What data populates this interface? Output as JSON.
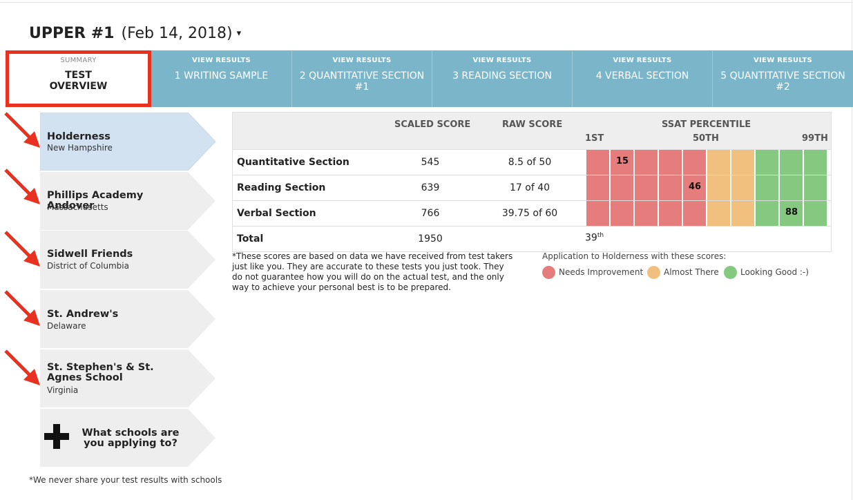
{
  "header": {
    "title_bold": "UPPER #1",
    "title_date": "(Feb 14, 2018)",
    "caret": "▾"
  },
  "tabs": [
    {
      "kicker": "SUMMARY",
      "label": "TEST OVERVIEW",
      "active": true
    },
    {
      "kicker": "VIEW RESULTS",
      "label": "1 WRITING SAMPLE",
      "active": false
    },
    {
      "kicker": "VIEW RESULTS",
      "label": "2 QUANTITATIVE SECTION #1",
      "active": false
    },
    {
      "kicker": "VIEW RESULTS",
      "label": "3 READING SECTION",
      "active": false
    },
    {
      "kicker": "VIEW RESULTS",
      "label": "4 VERBAL SECTION",
      "active": false
    },
    {
      "kicker": "VIEW RESULTS",
      "label": "5 QUANTITATIVE SECTION #2",
      "active": false
    }
  ],
  "schools": [
    {
      "name": "Holderness",
      "state": "New Hampshire",
      "selected": true
    },
    {
      "name": "Phillips Academy Andover",
      "state": "Massachusetts",
      "selected": false
    },
    {
      "name": "Sidwell Friends",
      "state": "District of Columbia",
      "selected": false
    },
    {
      "name": "St. Andrew's",
      "state": "Delaware",
      "selected": false
    },
    {
      "name": "St. Stephen's & St. Agnes School",
      "state": "Virginia",
      "selected": false
    }
  ],
  "add_school": {
    "label": "What schools are you applying to?"
  },
  "footnote": "*We never share your test results with schools",
  "table": {
    "headers": {
      "scaled": "SCALED SCORE",
      "raw": "RAW SCORE",
      "percentile": "SSAT PERCENTILE",
      "p_low": "1ST",
      "p_mid": "50TH",
      "p_high": "99TH"
    },
    "rows": [
      {
        "section": "Quantitative Section",
        "scaled": "545",
        "raw": "8.5 of 50",
        "percentile": "15"
      },
      {
        "section": "Reading Section",
        "scaled": "639",
        "raw": "17 of 40",
        "percentile": "46"
      },
      {
        "section": "Verbal Section",
        "scaled": "766",
        "raw": "39.75 of 60",
        "percentile": "88"
      }
    ],
    "total": {
      "label": "Total",
      "scaled": "1950",
      "percentile": "39",
      "suffix": "th"
    },
    "scale_colors": [
      "red",
      "red",
      "red",
      "red",
      "red",
      "yellow",
      "yellow",
      "green",
      "green",
      "green"
    ]
  },
  "disclaimer": "*These scores are based on data we have received from test takers just like you. They are accurate to these tests you just took. They do not guarantee how you will do on the actual test, and the only way to achieve your personal best is to be prepared.",
  "legend": {
    "title": "Application to Holderness with these scores:",
    "items": [
      {
        "label": "Needs Improvement",
        "color": "#e47d7b"
      },
      {
        "label": "Almost There",
        "color": "#f2c07e"
      },
      {
        "label": "Looking Good :-)",
        "color": "#84c97f"
      }
    ]
  },
  "colors": {
    "tab_bg": "#7ab5ca",
    "highlight": "#e8321f",
    "selected_school": "#d3e2f0",
    "school_bg": "#eeeeee"
  }
}
